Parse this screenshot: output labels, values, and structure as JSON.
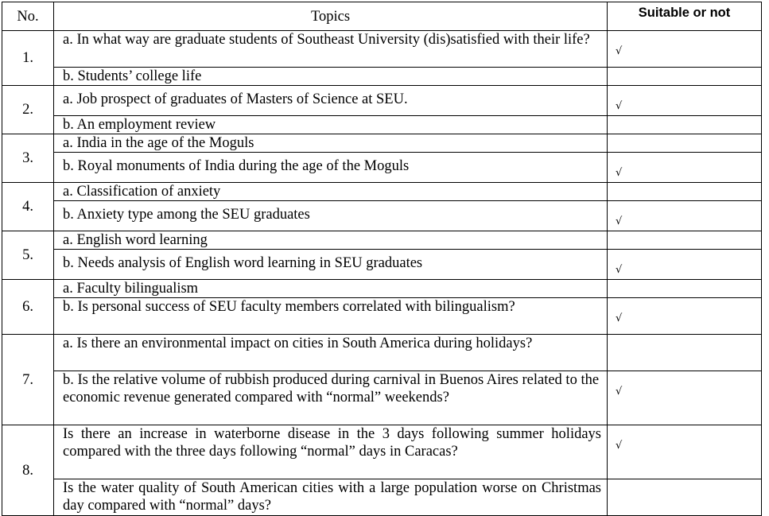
{
  "headers": {
    "no": "No.",
    "topics": "Topics",
    "suitable": "Suitable or not"
  },
  "rows": [
    {
      "no": "1.",
      "items": [
        {
          "text": "a. In what way are graduate students of Southeast University (dis)satisfied with their life?",
          "check": "√"
        },
        {
          "text": "b. Students’ college life",
          "check": ""
        }
      ]
    },
    {
      "no": "2.",
      "items": [
        {
          "text": "a. Job prospect of graduates of Masters of Science at SEU.",
          "check": "√"
        },
        {
          "text": "b. An employment review",
          "check": ""
        }
      ]
    },
    {
      "no": "3.",
      "items": [
        {
          "text": "a. India in the age of the Moguls",
          "check": ""
        },
        {
          "text": "b. Royal monuments of India during the age of the Moguls",
          "check": "√"
        }
      ]
    },
    {
      "no": "4.",
      "items": [
        {
          "text": "a. Classification of anxiety",
          "check": ""
        },
        {
          "text": "b. Anxiety type among the SEU graduates",
          "check": "√"
        }
      ]
    },
    {
      "no": "5.",
      "items": [
        {
          "text": "a. English word learning",
          "check": ""
        },
        {
          "text": "b. Needs analysis of English word learning in  SEU graduates",
          "check": "√"
        }
      ]
    },
    {
      "no": "6.",
      "items": [
        {
          "text": "a. Faculty bilingualism",
          "check": ""
        },
        {
          "text": "b. Is personal success of SEU faculty members correlated with bilingualism?",
          "check": "√"
        }
      ]
    },
    {
      "no": "7.",
      "items": [
        {
          "text": "a. Is there an environmental impact on cities in South America during holidays?",
          "check": ""
        },
        {
          "text": "b. Is the relative volume of rubbish produced during carnival in Buenos Aires related to the economic revenue generated compared with “normal” weekends?",
          "check": "√"
        }
      ]
    },
    {
      "no": "8.",
      "items": [
        {
          "text": "Is there an increase in waterborne disease in the 3 days following summer holidays compared with the three days following “normal” days in Caracas?",
          "check": "√"
        },
        {
          "text": "Is the water quality of South American cities with a large population worse on Christmas day compared with “normal” days?",
          "check": ""
        }
      ]
    }
  ]
}
